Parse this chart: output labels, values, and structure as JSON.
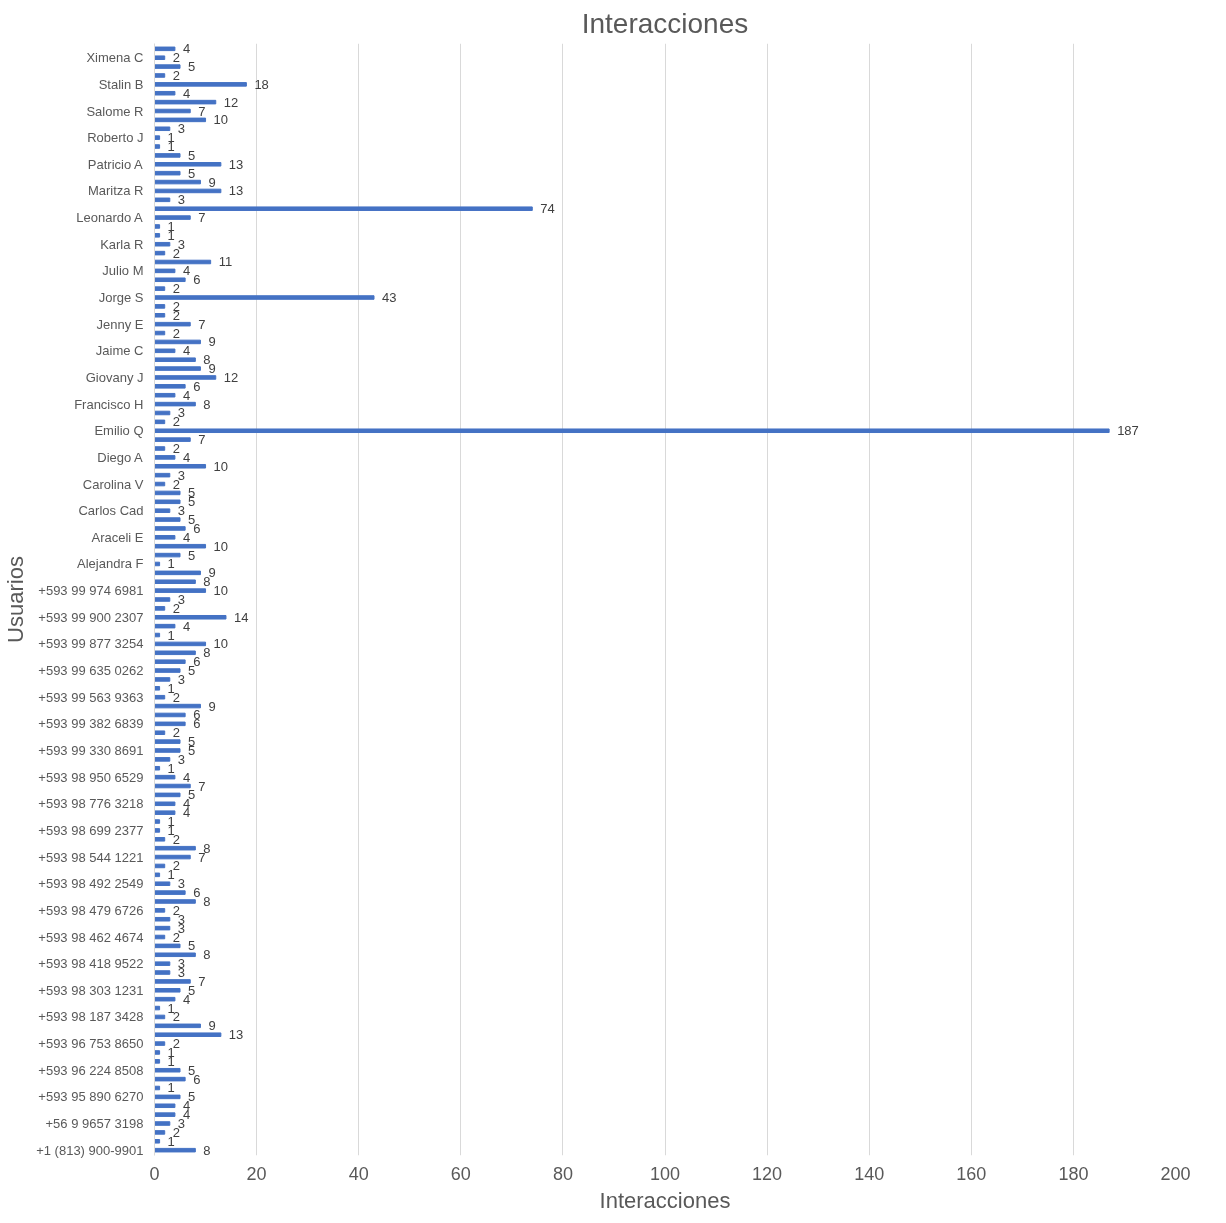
{
  "chart_data": {
    "type": "bar",
    "orientation": "horizontal",
    "title": "Interacciones",
    "xlabel": "Interacciones",
    "ylabel": "Usuarios",
    "categories": [
      null,
      "Ximena C",
      null,
      null,
      "Stalin B",
      null,
      null,
      "Salome R",
      null,
      null,
      "Roberto J",
      null,
      null,
      "Patricio A",
      null,
      null,
      "Maritza R",
      null,
      null,
      "Leonardo A",
      null,
      null,
      "Karla R",
      null,
      null,
      "Julio M",
      null,
      null,
      "Jorge S",
      null,
      null,
      "Jenny E",
      null,
      null,
      "Jaime C",
      null,
      null,
      "Giovany J",
      null,
      null,
      "Francisco H",
      null,
      null,
      "Emilio Q",
      null,
      null,
      "Diego A",
      null,
      null,
      "Carolina V",
      null,
      null,
      "Carlos Cad",
      null,
      null,
      "Araceli E",
      null,
      null,
      "Alejandra F",
      null,
      null,
      "+593 99 974 6981",
      null,
      null,
      "+593 99 900 2307",
      null,
      null,
      "+593 99 877 3254",
      null,
      null,
      "+593 99 635 0262",
      null,
      null,
      "+593 99 563 9363",
      null,
      null,
      "+593 99 382 6839",
      null,
      null,
      "+593 99 330 8691",
      null,
      null,
      "+593 98 950 6529",
      null,
      null,
      "+593 98 776 3218",
      null,
      null,
      "+593 98 699 2377",
      null,
      null,
      "+593 98 544 1221",
      null,
      null,
      "+593 98 492 2549",
      null,
      null,
      "+593 98 479 6726",
      null,
      null,
      "+593 98 462 4674",
      null,
      null,
      "+593 98 418 9522",
      null,
      null,
      "+593 98 303 1231",
      null,
      null,
      "+593 98 187 3428",
      null,
      null,
      "+593 96 753 8650",
      null,
      null,
      "+593 96 224 8508",
      null,
      null,
      "+593 95 890 6270",
      null,
      null,
      "+56 9 9657 3198",
      null,
      null,
      "+1 (813) 900-9901"
    ],
    "values": [
      4,
      2,
      5,
      2,
      18,
      4,
      12,
      7,
      10,
      3,
      1,
      1,
      5,
      13,
      5,
      9,
      13,
      3,
      74,
      7,
      1,
      1,
      3,
      2,
      11,
      4,
      6,
      2,
      43,
      2,
      2,
      7,
      2,
      9,
      4,
      8,
      9,
      12,
      6,
      4,
      8,
      3,
      2,
      187,
      7,
      2,
      4,
      10,
      3,
      2,
      5,
      5,
      3,
      5,
      6,
      4,
      10,
      5,
      1,
      9,
      8,
      10,
      3,
      2,
      14,
      4,
      1,
      10,
      8,
      6,
      5,
      3,
      1,
      2,
      9,
      6,
      6,
      2,
      5,
      5,
      3,
      1,
      4,
      7,
      5,
      4,
      4,
      1,
      1,
      2,
      8,
      7,
      2,
      1,
      3,
      6,
      8,
      2,
      3,
      3,
      2,
      5,
      8,
      3,
      3,
      7,
      5,
      4,
      1,
      2,
      9,
      13,
      2,
      1,
      1,
      5,
      6,
      1,
      5,
      4,
      4,
      3,
      2,
      1,
      8
    ],
    "color": "#4472c4",
    "data_labels": true,
    "xlim": [
      0,
      200
    ],
    "xticks": [
      0,
      20,
      40,
      60,
      80,
      100,
      120,
      140,
      160,
      180,
      200
    ],
    "grid": "x"
  }
}
